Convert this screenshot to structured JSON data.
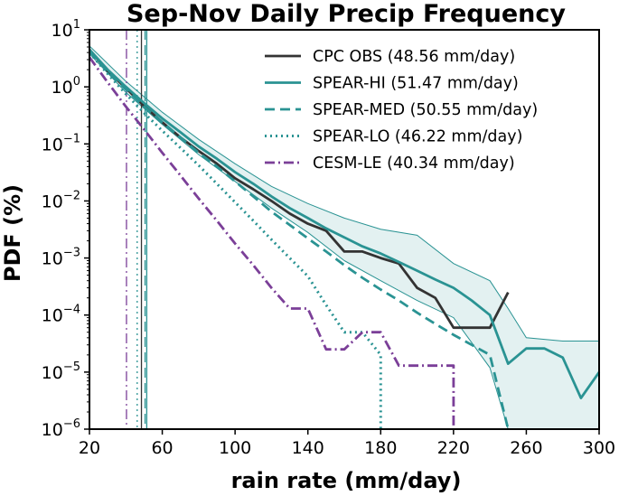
{
  "chart_data": {
    "type": "line",
    "title": "Sep-Nov Daily Precip Frequency",
    "xlabel": "rain rate (mm/day)",
    "ylabel": "PDF (%)",
    "xlim": [
      20,
      300
    ],
    "ylim_log10": [
      -6,
      1
    ],
    "yscale": "log",
    "x_ticks": [
      20,
      60,
      100,
      140,
      180,
      220,
      260,
      300
    ],
    "y_ticks": [
      {
        "base": "10",
        "exp": "1"
      },
      {
        "base": "10",
        "exp": "0"
      },
      {
        "base": "10",
        "exp": "−1"
      },
      {
        "base": "10",
        "exp": "−2"
      },
      {
        "base": "10",
        "exp": "−3"
      },
      {
        "base": "10",
        "exp": "−4"
      },
      {
        "base": "10",
        "exp": "−5"
      },
      {
        "base": "10",
        "exp": "−6"
      }
    ],
    "legend_position": "top-right",
    "series": [
      {
        "name": "CPC OBS (48.56 mm/day)",
        "color": "#333333",
        "style": "solid",
        "mean": 48.56,
        "x": [
          20,
          30,
          40,
          50,
          60,
          70,
          80,
          90,
          100,
          110,
          120,
          130,
          140,
          150,
          160,
          170,
          180,
          190,
          200,
          210,
          220,
          230,
          240,
          250
        ],
        "y": [
          4.5,
          1.9,
          0.95,
          0.46,
          0.24,
          0.13,
          0.075,
          0.045,
          0.025,
          0.016,
          0.01,
          0.006,
          0.004,
          0.003,
          0.0013,
          0.0013,
          0.001,
          0.0008,
          0.0003,
          0.0002,
          6e-05,
          6e-05,
          6e-05,
          0.00025
        ]
      },
      {
        "name": "SPEAR-HI (51.47 mm/day)",
        "color": "#2a9393",
        "style": "solid",
        "mean": 51.47,
        "x": [
          20,
          30,
          40,
          50,
          60,
          70,
          80,
          90,
          100,
          110,
          120,
          130,
          140,
          150,
          160,
          170,
          180,
          190,
          200,
          210,
          220,
          230,
          240,
          250,
          260,
          270,
          280,
          290,
          300
        ],
        "y": [
          4.5,
          2.0,
          1.0,
          0.52,
          0.28,
          0.16,
          0.09,
          0.055,
          0.032,
          0.02,
          0.012,
          0.0075,
          0.005,
          0.0033,
          0.0023,
          0.0016,
          0.0012,
          0.00085,
          0.0006,
          0.00042,
          0.0003,
          0.00018,
          0.0001,
          1.4e-05,
          2.6e-05,
          2.6e-05,
          1.8e-05,
          3.5e-06,
          1e-05
        ]
      },
      {
        "name": "SPEAR-MED (50.55 mm/day)",
        "color": "#2a9393",
        "style": "dashed",
        "mean": 50.55,
        "x": [
          20,
          30,
          40,
          50,
          60,
          70,
          80,
          90,
          100,
          110,
          120,
          130,
          140,
          150,
          160,
          170,
          180,
          190,
          200,
          210,
          220,
          230,
          240,
          250
        ],
        "y": [
          4.2,
          1.85,
          0.9,
          0.45,
          0.24,
          0.13,
          0.07,
          0.04,
          0.022,
          0.012,
          0.0065,
          0.0038,
          0.0022,
          0.0013,
          0.00075,
          0.00045,
          0.00028,
          0.00018,
          0.00011,
          7e-05,
          4.5e-05,
          3e-05,
          2e-05,
          1e-06
        ]
      },
      {
        "name": "SPEAR-LO (46.22 mm/day)",
        "color": "#2a9393",
        "style": "dotted",
        "mean": 46.22,
        "x": [
          20,
          30,
          40,
          50,
          60,
          70,
          80,
          90,
          100,
          110,
          120,
          130,
          140,
          150,
          160,
          170,
          180,
          180
        ],
        "y": [
          4.0,
          1.7,
          0.75,
          0.35,
          0.17,
          0.085,
          0.042,
          0.02,
          0.0095,
          0.0045,
          0.0021,
          0.001,
          0.00048,
          0.00015,
          5e-05,
          5e-05,
          2e-05,
          1e-06
        ]
      },
      {
        "name": "CESM-LE (40.34 mm/day)",
        "color": "#7b3f98",
        "style": "dashdot",
        "mean": 40.34,
        "x": [
          20,
          30,
          40,
          50,
          60,
          70,
          80,
          90,
          100,
          110,
          120,
          130,
          140,
          150,
          160,
          170,
          180,
          190,
          200,
          210,
          220,
          220
        ],
        "y": [
          3.3,
          1.2,
          0.45,
          0.18,
          0.07,
          0.028,
          0.011,
          0.0045,
          0.0018,
          0.00075,
          0.0003,
          0.00013,
          0.00013,
          2.5e-05,
          2.5e-05,
          5e-05,
          5e-05,
          1.3e-05,
          1.3e-05,
          1.3e-05,
          1.3e-05,
          1e-06
        ]
      }
    ],
    "spread_band": {
      "series": "SPEAR-HI (51.47 mm/day)",
      "color": "#2a9393",
      "x": [
        20,
        40,
        60,
        80,
        100,
        120,
        140,
        160,
        180,
        200,
        220,
        240,
        250,
        260,
        280,
        300
      ],
      "upper": [
        5.2,
        1.25,
        0.36,
        0.12,
        0.045,
        0.018,
        0.009,
        0.005,
        0.0032,
        0.0025,
        0.0008,
        0.0004,
        0.00013,
        4e-05,
        3.5e-05,
        3.5e-05
      ],
      "lower": [
        3.8,
        0.8,
        0.22,
        0.065,
        0.022,
        0.0075,
        0.0028,
        0.0009,
        0.0004,
        0.00018,
        9e-05,
        1.2e-05,
        1e-06,
        1e-06,
        1e-06,
        1e-06
      ]
    }
  }
}
